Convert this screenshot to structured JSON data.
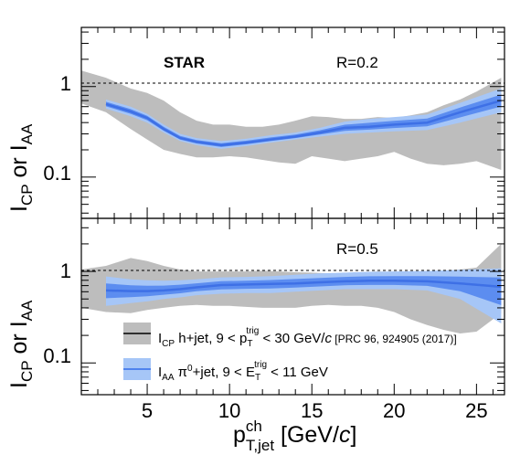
{
  "chart_data": [
    {
      "type": "area",
      "panel": "top",
      "experiment_label": "STAR",
      "annotation": "R=0.2",
      "ylabel": {
        "main": "I",
        "sub1": "CP",
        "mid": " or I",
        "sub2": "AA"
      },
      "ylog": true,
      "ylim": [
        0.035,
        4.5
      ],
      "y_ticks": [
        {
          "value": 0.1,
          "label": "0.1"
        },
        {
          "value": 1,
          "label": "1"
        }
      ],
      "reference_line": 1,
      "series": [
        {
          "name": "I_CP h+jet",
          "x": [
            1,
            2.5,
            4,
            5,
            6,
            7,
            8,
            9,
            10,
            11,
            12,
            13,
            14,
            15,
            16,
            17,
            18,
            19,
            20,
            21,
            22,
            23,
            24,
            25,
            26.5
          ],
          "low": [
            0.65,
            0.52,
            0.34,
            0.26,
            0.2,
            0.18,
            0.165,
            0.165,
            0.17,
            0.165,
            0.155,
            0.145,
            0.14,
            0.17,
            0.16,
            0.15,
            0.16,
            0.17,
            0.19,
            0.16,
            0.14,
            0.135,
            0.14,
            0.15,
            0.12
          ],
          "high": [
            1.5,
            1.25,
            0.95,
            0.85,
            0.7,
            0.52,
            0.42,
            0.38,
            0.38,
            0.36,
            0.36,
            0.38,
            0.42,
            0.47,
            0.46,
            0.44,
            0.44,
            0.46,
            0.45,
            0.48,
            0.52,
            0.62,
            0.72,
            0.88,
            1.25
          ]
        },
        {
          "name": "I_AA π0+jet",
          "x": [
            2.5,
            4,
            5,
            6,
            7,
            8,
            9.5,
            11,
            12.5,
            14,
            15.5,
            17,
            18.5,
            20,
            22,
            24,
            26.5
          ],
          "central": [
            0.64,
            0.53,
            0.45,
            0.34,
            0.27,
            0.245,
            0.225,
            0.24,
            0.26,
            0.28,
            0.31,
            0.35,
            0.36,
            0.38,
            0.4,
            0.52,
            0.7
          ],
          "low": [
            0.57,
            0.47,
            0.4,
            0.31,
            0.25,
            0.225,
            0.205,
            0.22,
            0.24,
            0.26,
            0.28,
            0.3,
            0.31,
            0.32,
            0.33,
            0.4,
            0.52
          ],
          "high": [
            0.72,
            0.6,
            0.5,
            0.38,
            0.3,
            0.27,
            0.25,
            0.265,
            0.29,
            0.31,
            0.35,
            0.41,
            0.44,
            0.46,
            0.49,
            0.66,
            0.95
          ]
        }
      ]
    },
    {
      "type": "area",
      "panel": "bottom",
      "annotation": "R=0.5",
      "ylabel": {
        "main": "I",
        "sub1": "CP",
        "mid": " or I",
        "sub2": "AA"
      },
      "ylog": true,
      "ylim": [
        0.045,
        3.8
      ],
      "y_ticks": [
        {
          "value": 0.1,
          "label": "0.1"
        },
        {
          "value": 1,
          "label": "1"
        }
      ],
      "reference_line": 1,
      "x_axis_ticks": [
        5,
        10,
        15,
        20,
        25
      ],
      "xlim": [
        1,
        26.7
      ],
      "xlabel": {
        "p": "p",
        "sup": "ch",
        "sub": "T,jet",
        "unit_a": " [GeV/",
        "unit_c": "c",
        "unit_b": "]"
      },
      "series": [
        {
          "name": "I_CP h+jet",
          "x": [
            1,
            2.5,
            4,
            5,
            6,
            7,
            8,
            9,
            10,
            11,
            12,
            13,
            14,
            15,
            16,
            17,
            18,
            19,
            20,
            21,
            22,
            23,
            24,
            25,
            26.5
          ],
          "low": [
            0.4,
            0.36,
            0.35,
            0.38,
            0.4,
            0.42,
            0.43,
            0.42,
            0.42,
            0.41,
            0.4,
            0.4,
            0.4,
            0.42,
            0.43,
            0.42,
            0.42,
            0.4,
            0.36,
            0.3,
            0.26,
            0.23,
            0.21,
            0.22,
            0.35
          ],
          "high": [
            1.05,
            1.15,
            1.4,
            1.3,
            1.15,
            1.05,
            1.0,
            1.0,
            1.0,
            1.0,
            1.02,
            1.0,
            0.98,
            0.97,
            0.95,
            0.95,
            0.97,
            1.0,
            0.98,
            0.97,
            1.0,
            1.02,
            1.05,
            1.1,
            2.0
          ]
        },
        {
          "name": "I_AA π0+jet",
          "x": [
            2.5,
            4,
            5,
            6,
            7,
            8,
            9.5,
            11,
            12.5,
            14,
            15.5,
            17,
            18.5,
            20,
            22,
            24,
            26.5
          ],
          "central": [
            0.62,
            0.61,
            0.61,
            0.62,
            0.64,
            0.67,
            0.71,
            0.72,
            0.73,
            0.74,
            0.76,
            0.78,
            0.79,
            0.79,
            0.78,
            0.74,
            0.68
          ],
          "low": [
            0.42,
            0.45,
            0.47,
            0.5,
            0.52,
            0.55,
            0.57,
            0.58,
            0.58,
            0.6,
            0.62,
            0.64,
            0.64,
            0.64,
            0.62,
            0.5,
            0.27
          ],
          "high": [
            0.88,
            0.82,
            0.8,
            0.79,
            0.8,
            0.82,
            0.86,
            0.87,
            0.89,
            0.92,
            0.95,
            0.97,
            0.99,
            1.0,
            1.01,
            1.04,
            1.08
          ]
        }
      ],
      "legend": [
        {
          "id": "icp",
          "main": "I",
          "sub": "CP",
          "t1": " h+jet, 9 < p",
          "trig_top": "trig",
          "trig_sub": "T",
          "t2": " < 30 GeV/",
          "c": "c",
          "ref": " [PRC 96, 924905 (2017)]"
        },
        {
          "id": "iaa",
          "main": "I",
          "sub": "AA",
          "t1": " π",
          "sup0": "0",
          "t2": "+jet, 9 < E",
          "trig_top": "trig",
          "trig_sub": "T",
          "t3": " < 11 GeV"
        }
      ]
    }
  ],
  "colors": {
    "icp_band": "#bdbdbd",
    "icp_line": "#000000",
    "iaa_band": "#a6c6f7",
    "iaa_mid": "#4f83ee",
    "iaa_line": "#3e70e6",
    "axis": "#000000",
    "ref_line": "#000000"
  }
}
